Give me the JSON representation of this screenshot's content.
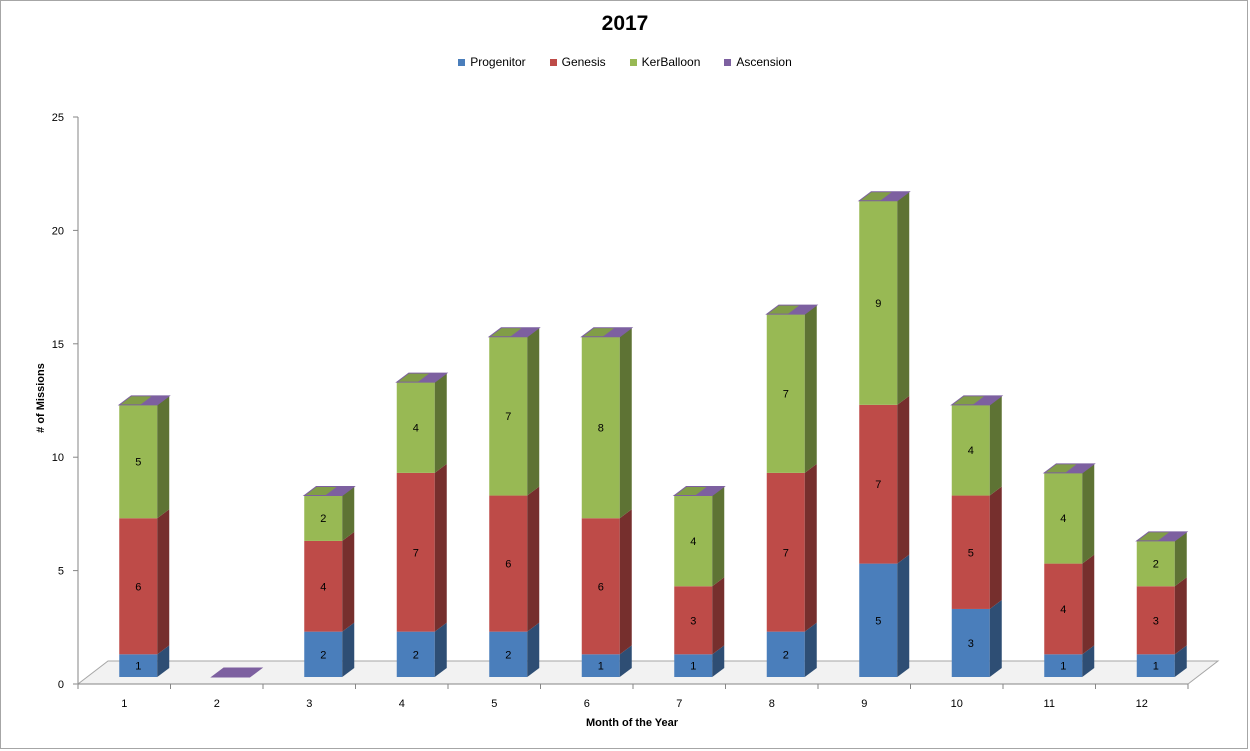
{
  "chart_data": {
    "type": "bar",
    "stacked": true,
    "three_d": true,
    "title": "2017",
    "xlabel": "Month of the Year",
    "ylabel": "# of Missions",
    "ylim": [
      0,
      25
    ],
    "yticks": [
      0,
      5,
      10,
      15,
      20,
      25
    ],
    "categories": [
      "1",
      "2",
      "3",
      "4",
      "5",
      "6",
      "7",
      "8",
      "9",
      "10",
      "11",
      "12"
    ],
    "legend_position": "top",
    "series": [
      {
        "name": "Progenitor",
        "color": "#4a7ebb",
        "values": [
          1,
          null,
          2,
          2,
          2,
          1,
          1,
          2,
          5,
          3,
          1,
          1
        ]
      },
      {
        "name": "Genesis",
        "color": "#be4b48",
        "values": [
          6,
          null,
          4,
          7,
          6,
          6,
          3,
          7,
          7,
          5,
          4,
          3
        ]
      },
      {
        "name": "KerBalloon",
        "color": "#98b954",
        "values": [
          5,
          null,
          2,
          4,
          7,
          8,
          4,
          7,
          9,
          4,
          4,
          2
        ]
      },
      {
        "name": "Ascension",
        "color": "#7d60a0",
        "values": [
          0,
          0,
          0,
          0,
          0,
          0,
          0,
          0,
          0,
          0,
          0,
          0
        ]
      }
    ]
  }
}
